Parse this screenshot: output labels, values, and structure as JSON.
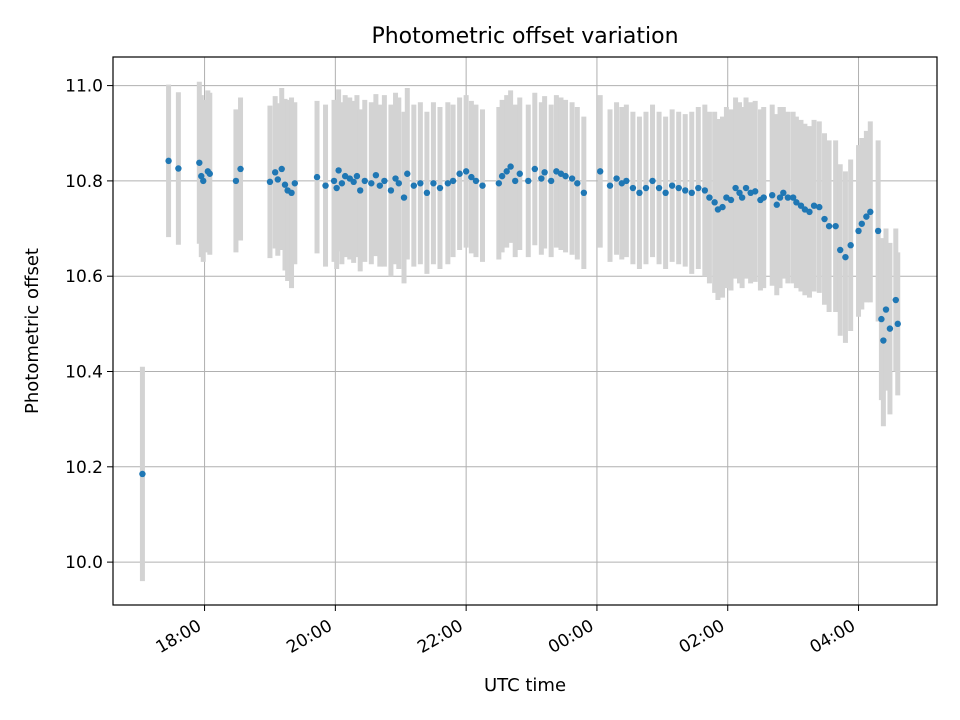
{
  "chart_data": {
    "type": "scatter",
    "title": "Photometric offset variation",
    "xlabel": "UTC time",
    "ylabel": "Photometric offset",
    "xlim": [
      16.6,
      29.2
    ],
    "ylim": [
      9.91,
      11.06
    ],
    "xticks": [
      {
        "value": 18,
        "label": "18:00"
      },
      {
        "value": 20,
        "label": "20:00"
      },
      {
        "value": 22,
        "label": "22:00"
      },
      {
        "value": 24,
        "label": "00:00"
      },
      {
        "value": 26,
        "label": "02:00"
      },
      {
        "value": 28,
        "label": "04:00"
      }
    ],
    "yticks": [
      {
        "value": 10.0,
        "label": "10.0"
      },
      {
        "value": 10.2,
        "label": "10.2"
      },
      {
        "value": 10.4,
        "label": "10.4"
      },
      {
        "value": 10.6,
        "label": "10.6"
      },
      {
        "value": 10.8,
        "label": "10.8"
      },
      {
        "value": 11.0,
        "label": "11.0"
      }
    ],
    "grid": true,
    "colors": {
      "point": "#1f77b4",
      "errorbar": "#d3d3d3",
      "grid": "#b0b0b0",
      "axis": "#000000"
    },
    "series": [
      {
        "name": "offset",
        "x": [
          17.05,
          17.45,
          17.6,
          17.92,
          17.95,
          17.98,
          18.05,
          18.08,
          18.48,
          18.55,
          19.0,
          19.08,
          19.12,
          19.18,
          19.23,
          19.27,
          19.33,
          19.38,
          19.72,
          19.85,
          19.98,
          20.02,
          20.05,
          20.1,
          20.15,
          20.22,
          20.28,
          20.33,
          20.38,
          20.45,
          20.55,
          20.62,
          20.68,
          20.75,
          20.85,
          20.92,
          20.97,
          21.05,
          21.1,
          21.2,
          21.3,
          21.4,
          21.5,
          21.6,
          21.72,
          21.8,
          21.9,
          22.0,
          22.08,
          22.15,
          22.25,
          22.5,
          22.55,
          22.62,
          22.68,
          22.75,
          22.82,
          22.95,
          23.05,
          23.15,
          23.2,
          23.3,
          23.38,
          23.45,
          23.52,
          23.62,
          23.7,
          23.8,
          24.05,
          24.2,
          24.3,
          24.38,
          24.45,
          24.55,
          24.65,
          24.75,
          24.85,
          24.95,
          25.05,
          25.15,
          25.25,
          25.35,
          25.45,
          25.55,
          25.65,
          25.72,
          25.8,
          25.85,
          25.92,
          25.98,
          26.05,
          26.12,
          26.18,
          26.22,
          26.28,
          26.35,
          26.42,
          26.5,
          26.55,
          26.68,
          26.75,
          26.8,
          26.85,
          26.92,
          27.0,
          27.05,
          27.12,
          27.18,
          27.25,
          27.32,
          27.4,
          27.48,
          27.55,
          27.65,
          27.72,
          27.8,
          27.88,
          28.0,
          28.05,
          28.12,
          28.18,
          28.3,
          28.35,
          28.38,
          28.42,
          28.48,
          28.57,
          28.6
        ],
        "y": [
          10.185,
          10.842,
          10.826,
          10.838,
          10.81,
          10.8,
          10.82,
          10.815,
          10.8,
          10.825,
          10.798,
          10.818,
          10.803,
          10.825,
          10.792,
          10.78,
          10.775,
          10.795,
          10.808,
          10.79,
          10.8,
          10.785,
          10.822,
          10.795,
          10.81,
          10.805,
          10.798,
          10.81,
          10.78,
          10.8,
          10.795,
          10.812,
          10.79,
          10.8,
          10.78,
          10.805,
          10.795,
          10.765,
          10.815,
          10.79,
          10.795,
          10.775,
          10.795,
          10.785,
          10.795,
          10.8,
          10.815,
          10.82,
          10.808,
          10.8,
          10.79,
          10.795,
          10.81,
          10.82,
          10.83,
          10.8,
          10.815,
          10.8,
          10.825,
          10.805,
          10.818,
          10.8,
          10.82,
          10.815,
          10.81,
          10.805,
          10.795,
          10.775,
          10.82,
          10.79,
          10.805,
          10.795,
          10.8,
          10.785,
          10.775,
          10.785,
          10.8,
          10.785,
          10.775,
          10.79,
          10.785,
          10.78,
          10.775,
          10.785,
          10.78,
          10.765,
          10.755,
          10.74,
          10.745,
          10.765,
          10.76,
          10.785,
          10.775,
          10.765,
          10.785,
          10.775,
          10.778,
          10.76,
          10.765,
          10.77,
          10.75,
          10.765,
          10.775,
          10.765,
          10.765,
          10.755,
          10.748,
          10.74,
          10.735,
          10.748,
          10.745,
          10.72,
          10.705,
          10.705,
          10.655,
          10.64,
          10.665,
          10.695,
          10.71,
          10.725,
          10.735,
          10.695,
          10.51,
          10.465,
          10.53,
          10.49,
          10.55,
          10.5
        ],
        "err": [
          0.225,
          0.16,
          0.16,
          0.17,
          0.17,
          0.17,
          0.17,
          0.17,
          0.15,
          0.15,
          0.16,
          0.16,
          0.16,
          0.17,
          0.18,
          0.19,
          0.2,
          0.17,
          0.16,
          0.17,
          0.17,
          0.17,
          0.17,
          0.17,
          0.17,
          0.17,
          0.17,
          0.17,
          0.17,
          0.17,
          0.17,
          0.17,
          0.17,
          0.18,
          0.18,
          0.18,
          0.18,
          0.18,
          0.18,
          0.17,
          0.17,
          0.17,
          0.17,
          0.17,
          0.17,
          0.16,
          0.16,
          0.16,
          0.16,
          0.16,
          0.16,
          0.16,
          0.16,
          0.16,
          0.16,
          0.16,
          0.16,
          0.16,
          0.16,
          0.16,
          0.16,
          0.16,
          0.16,
          0.16,
          0.16,
          0.16,
          0.16,
          0.16,
          0.16,
          0.16,
          0.16,
          0.16,
          0.16,
          0.16,
          0.16,
          0.16,
          0.16,
          0.16,
          0.16,
          0.16,
          0.16,
          0.16,
          0.17,
          0.17,
          0.18,
          0.18,
          0.19,
          0.19,
          0.19,
          0.19,
          0.19,
          0.19,
          0.19,
          0.19,
          0.19,
          0.19,
          0.19,
          0.19,
          0.19,
          0.19,
          0.19,
          0.19,
          0.18,
          0.18,
          0.18,
          0.18,
          0.18,
          0.18,
          0.18,
          0.18,
          0.18,
          0.18,
          0.18,
          0.18,
          0.18,
          0.18,
          0.18,
          0.18,
          0.18,
          0.18,
          0.19,
          0.19,
          0.17,
          0.18,
          0.17,
          0.18,
          0.15,
          0.15
        ]
      }
    ]
  }
}
